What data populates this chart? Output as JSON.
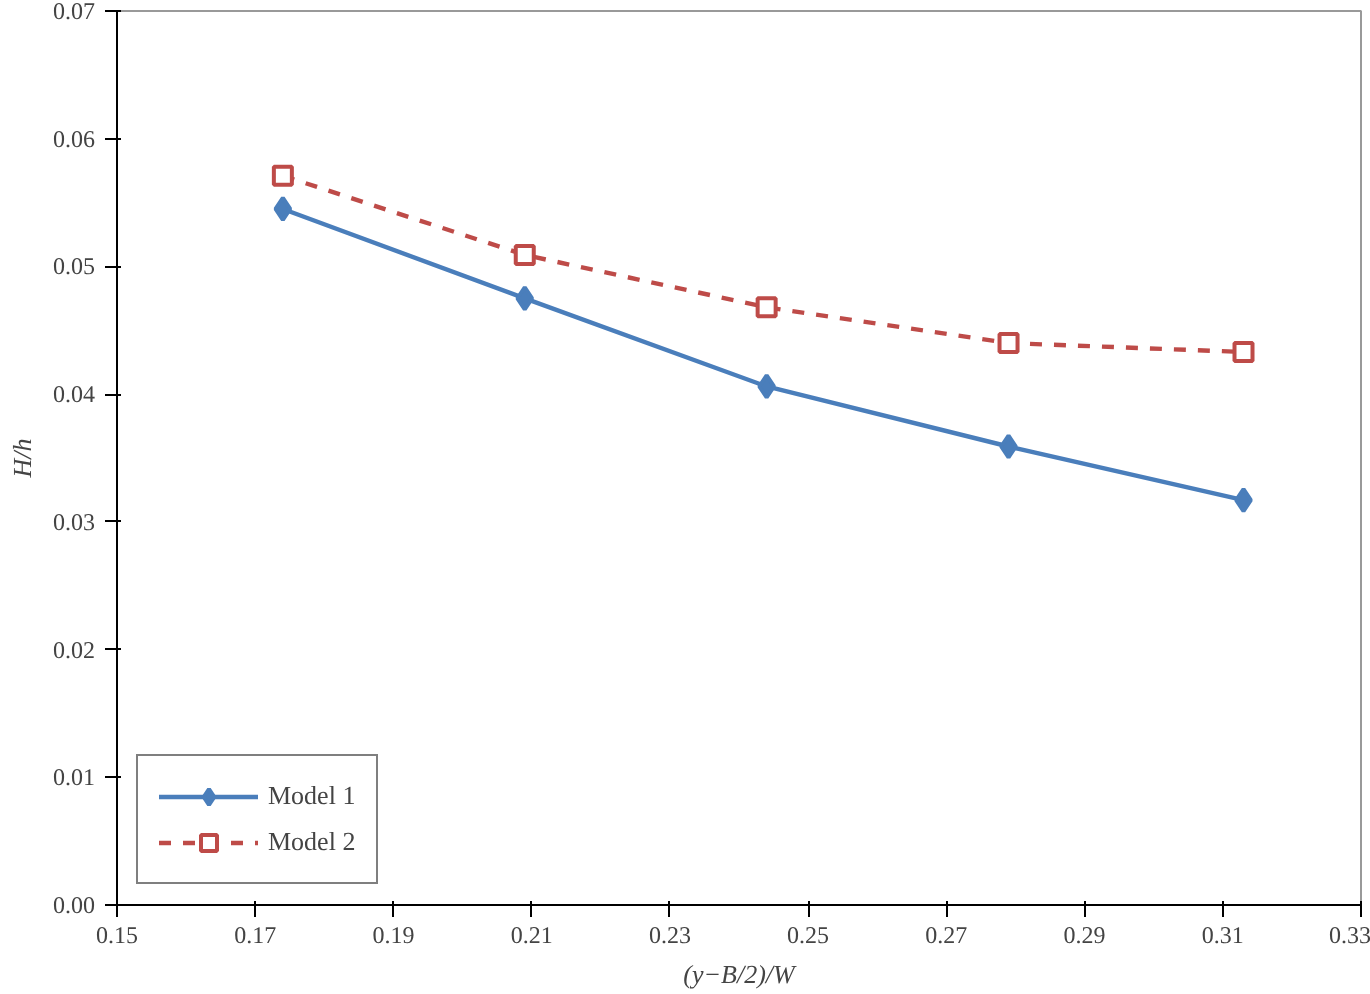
{
  "chart_data": {
    "type": "line",
    "xlabel": "(y−B/2)/W",
    "ylabel": "H/h",
    "x": [
      0.174,
      0.209,
      0.244,
      0.279,
      0.313
    ],
    "series": [
      {
        "name": "Model 1",
        "color": "#4a7ebb",
        "values": [
          0.0545,
          0.0475,
          0.0406,
          0.0359,
          0.0317
        ],
        "marker": "diamond",
        "line_style": "solid"
      },
      {
        "name": "Model 2",
        "color": "#be4b48",
        "values": [
          0.0571,
          0.0509,
          0.0468,
          0.044,
          0.0433
        ],
        "marker": "square",
        "line_style": "dashed"
      }
    ],
    "xlim": [
      0.15,
      0.33
    ],
    "xticks": [
      {
        "value": 0.15,
        "label": "0.15"
      },
      {
        "value": 0.17,
        "label": "0.17"
      },
      {
        "value": 0.19,
        "label": "0.19"
      },
      {
        "value": 0.21,
        "label": "0.21"
      },
      {
        "value": 0.23,
        "label": "0.23"
      },
      {
        "value": 0.25,
        "label": "0.25"
      },
      {
        "value": 0.27,
        "label": "0.27"
      },
      {
        "value": 0.29,
        "label": "0.29"
      },
      {
        "value": 0.31,
        "label": "0.31"
      },
      {
        "value": 0.33,
        "label": "0.33"
      }
    ],
    "ylim": [
      0,
      0.07
    ],
    "yticks": [
      {
        "value": 0,
        "label": "0.00"
      },
      {
        "value": 0.01,
        "label": "0.01"
      },
      {
        "value": 0.02,
        "label": "0.02"
      },
      {
        "value": 0.03,
        "label": "0.03"
      },
      {
        "value": 0.04,
        "label": "0.04"
      },
      {
        "value": 0.05,
        "label": "0.05"
      },
      {
        "value": 0.06,
        "label": "0.06"
      },
      {
        "value": 0.07,
        "label": "0.07"
      }
    ],
    "grid": false,
    "legend": "bottom left"
  }
}
